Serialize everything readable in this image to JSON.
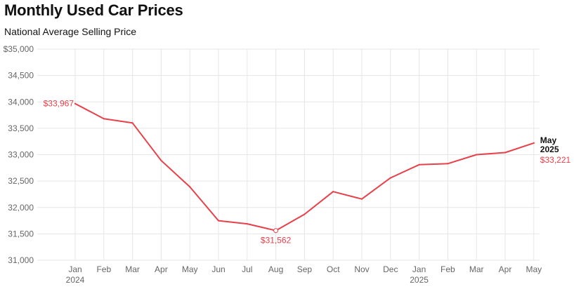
{
  "header": {
    "title": "Monthly Used Car Prices",
    "subtitle": "National Average Selling Price"
  },
  "colors": {
    "line": "#e8404a",
    "grid": "#e6e6e6",
    "tick_text": "#666666"
  },
  "chart_data": {
    "type": "line",
    "title": "Monthly Used Car Prices",
    "subtitle": "National Average Selling Price",
    "xlabel": "",
    "ylabel": "",
    "ylim": [
      31000,
      35000
    ],
    "y_ticks": [
      31000,
      31500,
      32000,
      32500,
      33000,
      33500,
      34000,
      34500,
      35000
    ],
    "y_tick_labels": [
      "31,000",
      "31,500",
      "32,000",
      "32,500",
      "33,000",
      "33,500",
      "34,000",
      "34,500",
      "$35,000"
    ],
    "grid": true,
    "x_tick_labels": [
      "Jan",
      "Feb",
      "Mar",
      "Apr",
      "May",
      "Jun",
      "Jul",
      "Aug",
      "Sep",
      "Oct",
      "Nov",
      "Dec",
      "Jan",
      "Feb",
      "Mar",
      "Apr",
      "May"
    ],
    "x_year_labels": [
      {
        "index": 0,
        "label": "2024"
      },
      {
        "index": 12,
        "label": "2025"
      }
    ],
    "series": [
      {
        "values": [
          33967,
          33680,
          33600,
          32890,
          32390,
          31750,
          31690,
          31562,
          31870,
          32300,
          32160,
          32560,
          32810,
          32830,
          33000,
          33040,
          33221
        ]
      }
    ],
    "annotations": [
      {
        "index": 0,
        "text": "$33,967",
        "position": "left"
      },
      {
        "index": 7,
        "text": "$31,562",
        "position": "below"
      },
      {
        "index": 16,
        "month": "May",
        "year": "2025",
        "text": "$33,221",
        "position": "right"
      }
    ]
  }
}
